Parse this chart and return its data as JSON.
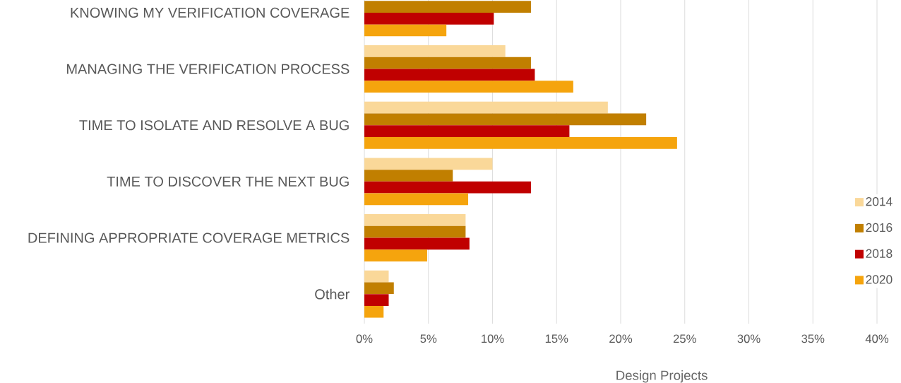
{
  "chart_data": {
    "type": "bar",
    "orientation": "horizontal",
    "xlabel": "Design Projects",
    "categories": [
      "KNOWING MY VERIFICATION COVERAGE",
      "MANAGING THE VERIFICATION PROCESS",
      "TIME TO ISOLATE AND RESOLVE A BUG",
      "TIME TO DISCOVER THE NEXT BUG",
      "DEFINING APPROPRIATE COVERAGE METRICS",
      "Other"
    ],
    "series": [
      {
        "name": "2014",
        "color": "#fad899",
        "values": [
          null,
          11.0,
          19.0,
          10.0,
          7.9,
          1.9
        ]
      },
      {
        "name": "2016",
        "color": "#c17f00",
        "values": [
          13.0,
          13.0,
          22.0,
          6.9,
          7.9,
          2.3
        ]
      },
      {
        "name": "2018",
        "color": "#c00000",
        "values": [
          10.1,
          13.3,
          16.0,
          13.0,
          8.2,
          1.9
        ]
      },
      {
        "name": "2020",
        "color": "#f5a40d",
        "values": [
          6.4,
          16.3,
          24.4,
          8.1,
          4.9,
          1.5
        ]
      }
    ],
    "xlim": [
      0,
      40
    ],
    "xticks": [
      {
        "value": 0,
        "label": "0%"
      },
      {
        "value": 5,
        "label": "5%"
      },
      {
        "value": 10,
        "label": "10%"
      },
      {
        "value": 15,
        "label": "15%"
      },
      {
        "value": 20,
        "label": "20%"
      },
      {
        "value": 25,
        "label": "25%"
      },
      {
        "value": 30,
        "label": "30%"
      },
      {
        "value": 35,
        "label": "35%"
      },
      {
        "value": 40,
        "label": "40%"
      }
    ],
    "grid": "x",
    "legend": "bottom right"
  }
}
